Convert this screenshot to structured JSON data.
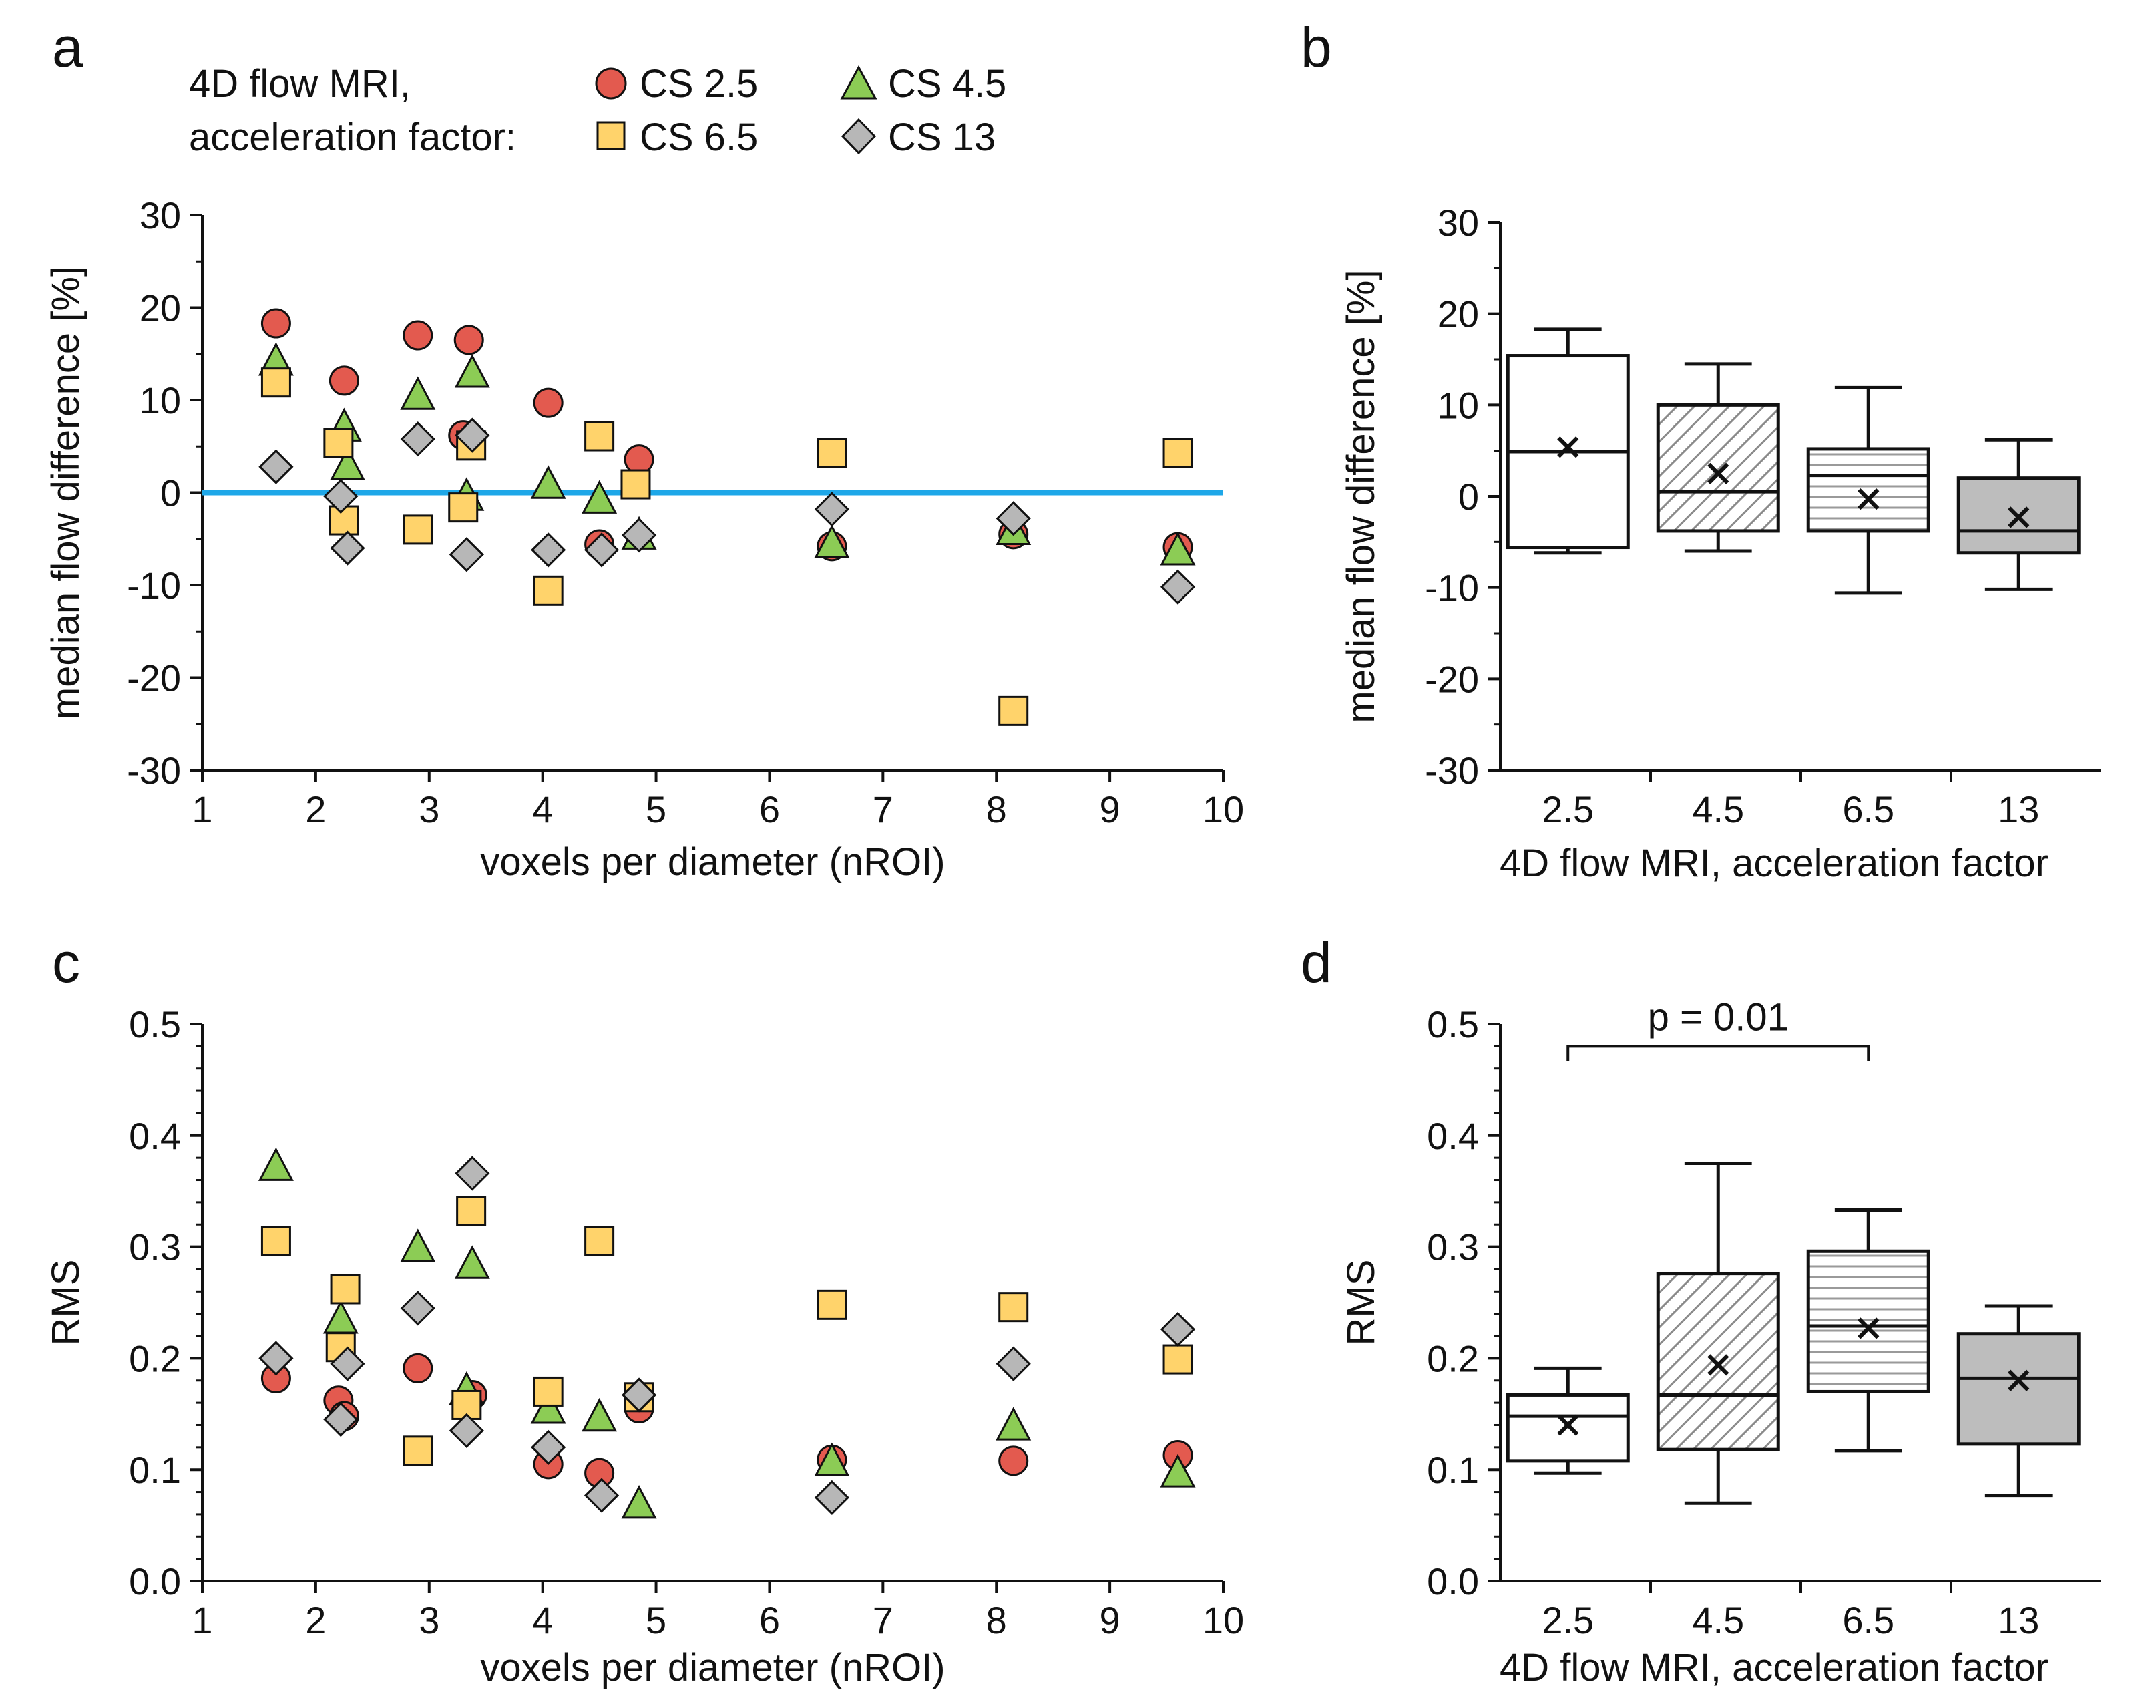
{
  "colors": {
    "cs25": "#e35a4f",
    "cs45": "#8ccc55",
    "cs65": "#ffd36b",
    "cs13": "#b7b7b7",
    "zero_line": "#1ea7e8",
    "box_13_fill": "#bdbdbd"
  },
  "legend": {
    "title_line1": "4D flow MRI,",
    "title_line2": "acceleration factor:",
    "entries": [
      {
        "key": "cs25",
        "label": "CS  2.5",
        "marker": "circle"
      },
      {
        "key": "cs45",
        "label": "CS  4.5",
        "marker": "triangle"
      },
      {
        "key": "cs65",
        "label": "CS  6.5",
        "marker": "square"
      },
      {
        "key": "cs13",
        "label": "CS  13",
        "marker": "diamond"
      }
    ]
  },
  "chart_data": [
    {
      "panel": "a",
      "type": "scatter",
      "xlabel": "voxels per diameter (nROI)",
      "ylabel": "median flow difference [%]",
      "xlim": [
        1,
        10
      ],
      "ylim": [
        -30,
        30
      ],
      "xticks": [
        1,
        2,
        3,
        4,
        5,
        6,
        7,
        8,
        9,
        10
      ],
      "yticks": [
        -30,
        -20,
        -10,
        0,
        10,
        20,
        30
      ],
      "zero_line": 0,
      "series": [
        {
          "key": "cs25",
          "name": "CS 2.5",
          "marker": "circle",
          "x": [
            1.65,
            2.25,
            2.9,
            3.35,
            3.3,
            4.05,
            4.5,
            4.85,
            6.55,
            8.15,
            9.6
          ],
          "y": [
            18.3,
            12.1,
            17.0,
            16.5,
            6.2,
            9.7,
            -5.6,
            3.6,
            -5.8,
            -4.5,
            -5.9
          ]
        },
        {
          "key": "cs45",
          "name": "CS 4.5",
          "marker": "triangle",
          "x": [
            1.65,
            2.25,
            2.28,
            2.9,
            3.38,
            3.33,
            4.05,
            4.5,
            4.85,
            6.55,
            8.15,
            9.6
          ],
          "y": [
            14.3,
            7.2,
            3.0,
            10.6,
            13.0,
            -0.3,
            1.0,
            -0.6,
            -4.5,
            -5.4,
            -4.0,
            -6.2
          ]
        },
        {
          "key": "cs65",
          "name": "CS 6.5",
          "marker": "square",
          "x": [
            1.65,
            2.2,
            2.25,
            2.9,
            3.3,
            3.37,
            4.05,
            4.5,
            4.82,
            6.55,
            8.15,
            9.6
          ],
          "y": [
            11.9,
            5.4,
            -3.0,
            -4.0,
            -1.6,
            5.1,
            -10.6,
            6.1,
            0.9,
            4.3,
            -23.6,
            4.3
          ]
        },
        {
          "key": "cs13",
          "name": "CS 13",
          "marker": "diamond",
          "x": [
            1.65,
            2.22,
            2.28,
            2.9,
            3.33,
            3.38,
            4.05,
            4.52,
            4.85,
            6.55,
            8.15,
            9.6
          ],
          "y": [
            2.8,
            -0.4,
            -6.0,
            5.8,
            -6.7,
            6.2,
            -6.2,
            -6.2,
            -4.6,
            -1.8,
            -2.8,
            -10.2
          ]
        }
      ]
    },
    {
      "panel": "b",
      "type": "box",
      "xlabel": "4D flow MRI, acceleration factor",
      "ylabel": "median flow difference [%]",
      "ylim": [
        -30,
        30
      ],
      "yticks": [
        -30,
        -20,
        -10,
        0,
        10,
        20,
        30
      ],
      "categories": [
        "2.5",
        "4.5",
        "6.5",
        "13"
      ],
      "boxes": [
        {
          "category": "2.5",
          "whisker_low": -6.2,
          "q1": -5.6,
          "median": 4.9,
          "q3": 15.4,
          "whisker_high": 18.3,
          "mean": 5.4,
          "fill": "white"
        },
        {
          "category": "4.5",
          "whisker_low": -6.0,
          "q1": -3.8,
          "median": 0.5,
          "q3": 10.0,
          "whisker_high": 14.5,
          "mean": 2.5,
          "fill": "diagonal-hatch"
        },
        {
          "category": "6.5",
          "whisker_low": -10.6,
          "q1": -3.8,
          "median": 2.3,
          "q3": 5.2,
          "whisker_high": 11.9,
          "mean": -0.3,
          "fill": "horizontal-stripes"
        },
        {
          "category": "13",
          "whisker_low": -10.2,
          "q1": -6.2,
          "median": -3.8,
          "q3": 2.0,
          "whisker_high": 6.2,
          "mean": -2.3,
          "fill": "grey"
        }
      ]
    },
    {
      "panel": "c",
      "type": "scatter",
      "xlabel": "voxels per diameter (nROI)",
      "ylabel": "RMS",
      "xlim": [
        1,
        10
      ],
      "ylim": [
        0,
        0.5
      ],
      "xticks": [
        1,
        2,
        3,
        4,
        5,
        6,
        7,
        8,
        9,
        10
      ],
      "yticks": [
        0,
        0.1,
        0.2,
        0.3,
        0.4,
        0.5
      ],
      "series": [
        {
          "key": "cs25",
          "name": "CS 2.5",
          "marker": "circle",
          "x": [
            1.65,
            2.2,
            2.25,
            2.9,
            3.38,
            4.05,
            4.5,
            4.85,
            6.55,
            8.15,
            9.6
          ],
          "y": [
            0.182,
            0.162,
            0.148,
            0.191,
            0.167,
            0.105,
            0.097,
            0.155,
            0.109,
            0.108,
            0.113
          ]
        },
        {
          "key": "cs45",
          "name": "CS 4.5",
          "marker": "triangle",
          "x": [
            1.65,
            2.22,
            2.9,
            3.38,
            3.33,
            4.05,
            4.5,
            4.85,
            6.55,
            8.15,
            9.6
          ],
          "y": [
            0.373,
            0.236,
            0.3,
            0.285,
            0.172,
            0.155,
            0.148,
            0.07,
            0.108,
            0.14,
            0.098
          ]
        },
        {
          "key": "cs65",
          "name": "CS 6.5",
          "marker": "square",
          "x": [
            1.65,
            2.22,
            2.26,
            2.9,
            3.33,
            3.37,
            4.05,
            4.5,
            4.85,
            6.55,
            8.15,
            9.6
          ],
          "y": [
            0.305,
            0.21,
            0.262,
            0.117,
            0.158,
            0.332,
            0.17,
            0.305,
            0.165,
            0.248,
            0.246,
            0.199
          ]
        },
        {
          "key": "cs13",
          "name": "CS 13",
          "marker": "diamond",
          "x": [
            1.65,
            2.22,
            2.28,
            2.9,
            3.33,
            3.38,
            4.05,
            4.52,
            4.85,
            6.55,
            8.15,
            9.6
          ],
          "y": [
            0.2,
            0.145,
            0.195,
            0.245,
            0.135,
            0.366,
            0.12,
            0.077,
            0.167,
            0.075,
            0.195,
            0.226
          ]
        }
      ]
    },
    {
      "panel": "d",
      "type": "box",
      "xlabel": "4D flow MRI, acceleration factor",
      "ylabel": "RMS",
      "ylim": [
        0,
        0.5
      ],
      "yticks": [
        0,
        0.1,
        0.2,
        0.3,
        0.4,
        0.5
      ],
      "categories": [
        "2.5",
        "4.5",
        "6.5",
        "13"
      ],
      "significance": {
        "from": "2.5",
        "to": "6.5",
        "label": "p = 0.01",
        "y": 0.48
      },
      "boxes": [
        {
          "category": "2.5",
          "whisker_low": 0.097,
          "q1": 0.108,
          "median": 0.148,
          "q3": 0.167,
          "whisker_high": 0.191,
          "mean": 0.14,
          "fill": "white"
        },
        {
          "category": "4.5",
          "whisker_low": 0.07,
          "q1": 0.118,
          "median": 0.167,
          "q3": 0.276,
          "whisker_high": 0.375,
          "mean": 0.194,
          "fill": "diagonal-hatch"
        },
        {
          "category": "6.5",
          "whisker_low": 0.117,
          "q1": 0.17,
          "median": 0.229,
          "q3": 0.296,
          "whisker_high": 0.333,
          "mean": 0.227,
          "fill": "horizontal-stripes"
        },
        {
          "category": "13",
          "whisker_low": 0.077,
          "q1": 0.123,
          "median": 0.182,
          "q3": 0.222,
          "whisker_high": 0.247,
          "mean": 0.18,
          "fill": "grey"
        }
      ]
    }
  ]
}
